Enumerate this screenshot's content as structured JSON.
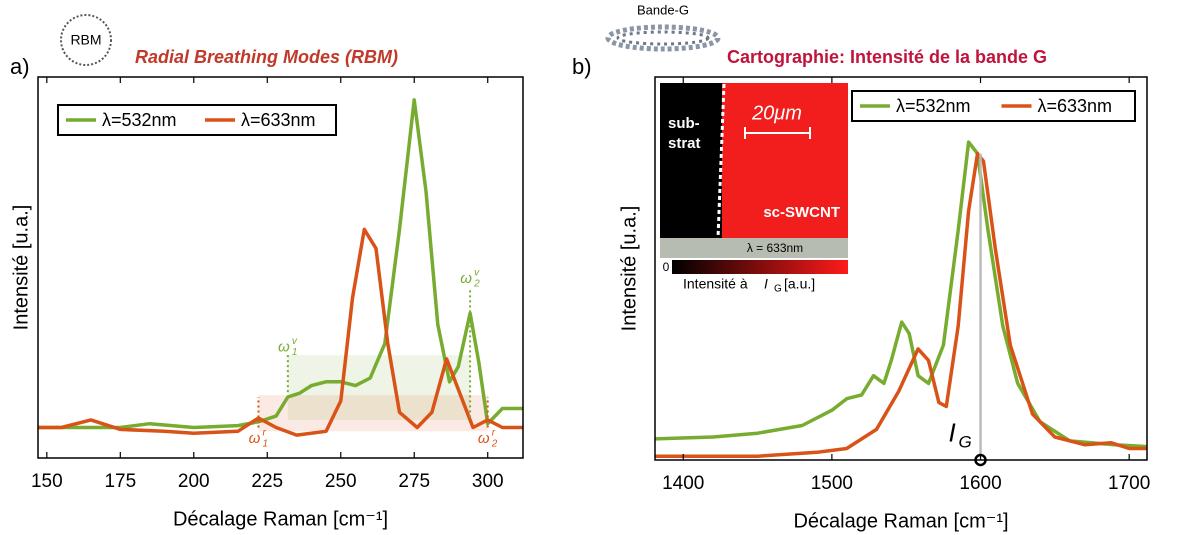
{
  "chart_data": [
    {
      "type": "line",
      "panel_label": "a)",
      "icon_label": "RBM",
      "title": "Radial Breathing Modes (RBM)",
      "x_label": "Décalage Raman [cm⁻¹]",
      "y_label": "Intensité [u.a.]",
      "xlim": [
        147,
        312
      ],
      "ylim": [
        0,
        1
      ],
      "xticks": [
        150,
        175,
        200,
        225,
        250,
        275,
        300
      ],
      "legend": "upper left",
      "series": [
        {
          "name": "λ=532nm",
          "color": "#77ac30",
          "x": [
            147,
            160,
            175,
            185,
            200,
            215,
            222,
            228,
            232,
            236,
            240,
            245,
            250,
            255,
            260,
            265,
            270,
            275,
            279,
            283,
            287,
            290,
            294,
            297,
            300,
            305,
            312
          ],
          "values": [
            0.08,
            0.08,
            0.08,
            0.09,
            0.08,
            0.085,
            0.095,
            0.11,
            0.16,
            0.17,
            0.19,
            0.2,
            0.2,
            0.19,
            0.21,
            0.3,
            0.6,
            0.94,
            0.7,
            0.35,
            0.2,
            0.24,
            0.38,
            0.25,
            0.09,
            0.13,
            0.13
          ]
        },
        {
          "name": "λ=633nm",
          "color": "#d95319",
          "x": [
            147,
            155,
            165,
            175,
            190,
            200,
            215,
            222,
            228,
            235,
            245,
            250,
            254,
            258,
            262,
            266,
            270,
            276,
            281,
            286,
            290,
            295,
            300,
            305,
            312
          ],
          "values": [
            0.08,
            0.08,
            0.1,
            0.075,
            0.07,
            0.065,
            0.07,
            0.105,
            0.08,
            0.06,
            0.07,
            0.15,
            0.42,
            0.6,
            0.55,
            0.3,
            0.12,
            0.08,
            0.12,
            0.26,
            0.18,
            0.08,
            0.1,
            0.08,
            0.08
          ]
        }
      ],
      "bands": [
        {
          "x": [
            232,
            294
          ],
          "y": [
            0.1,
            0.27
          ],
          "color": "#77ac30"
        },
        {
          "x": [
            222,
            300
          ],
          "y": [
            0.07,
            0.165
          ],
          "color": "#d95319"
        }
      ],
      "annotations": [
        {
          "text": "ω",
          "sub": "1",
          "sup": "v",
          "x": 232,
          "y": 0.29,
          "line": [
            0.27,
            0.17
          ],
          "color": "#77ac30"
        },
        {
          "text": "ω",
          "sub": "2",
          "sup": "v",
          "x": 294,
          "y": 0.47,
          "line": [
            0.44,
            0.1
          ],
          "color": "#77ac30"
        },
        {
          "text": "ω",
          "sub": "1",
          "sup": "r",
          "x": 222,
          "y": 0.05,
          "line": [
            0.08,
            0.16
          ],
          "color": "#d95319"
        },
        {
          "text": "ω",
          "sub": "2",
          "sup": "r",
          "x": 300,
          "y": 0.05,
          "line": [
            0.08,
            0.16
          ],
          "color": "#d95319"
        }
      ]
    },
    {
      "type": "line",
      "panel_label": "b)",
      "icon_label": "Bande-G",
      "title": "Cartographie: Intensité de la bande G",
      "x_label": "Décalage Raman [cm⁻¹]",
      "y_label": "Intensité [u.a.]",
      "xlim": [
        1381,
        1712
      ],
      "ylim": [
        0,
        1
      ],
      "xticks": [
        1400,
        1500,
        1600,
        1700
      ],
      "legend": "upper right",
      "series": [
        {
          "name": "λ=532nm",
          "color": "#77ac30",
          "x": [
            1381,
            1420,
            1450,
            1480,
            1500,
            1510,
            1520,
            1528,
            1535,
            1540,
            1547,
            1552,
            1558,
            1565,
            1575,
            1585,
            1592,
            1598,
            1605,
            1615,
            1625,
            1640,
            1660,
            1690,
            1712
          ],
          "values": [
            0.055,
            0.06,
            0.07,
            0.09,
            0.13,
            0.16,
            0.17,
            0.22,
            0.2,
            0.26,
            0.36,
            0.33,
            0.22,
            0.2,
            0.3,
            0.6,
            0.83,
            0.8,
            0.6,
            0.35,
            0.2,
            0.1,
            0.05,
            0.04,
            0.035
          ]
        },
        {
          "name": "λ=633nm",
          "color": "#d95319",
          "x": [
            1381,
            1450,
            1490,
            1510,
            1530,
            1545,
            1558,
            1565,
            1572,
            1577,
            1585,
            1592,
            1598,
            1602,
            1610,
            1620,
            1635,
            1650,
            1670,
            1688,
            1700,
            1712
          ],
          "values": [
            0.01,
            0.01,
            0.02,
            0.03,
            0.08,
            0.18,
            0.29,
            0.26,
            0.15,
            0.14,
            0.35,
            0.65,
            0.8,
            0.78,
            0.55,
            0.3,
            0.12,
            0.06,
            0.04,
            0.045,
            0.03,
            0.03
          ]
        }
      ],
      "annotations": [
        {
          "text": "I",
          "sub": "G",
          "x": 1600,
          "y": 0.05,
          "line": [
            0,
            0.8
          ],
          "color": "#bbbbbb",
          "marker": "circle"
        }
      ],
      "inset": {
        "substrate": [
          "sub-",
          "strat"
        ],
        "scale": "20μm",
        "sample": "sc-SWCNT",
        "wavelength": "λ = 633nm",
        "colorbar_min": "0",
        "colorbar_label": [
          "Intensité à ",
          "I",
          "G",
          " [a.u.]"
        ]
      }
    }
  ]
}
